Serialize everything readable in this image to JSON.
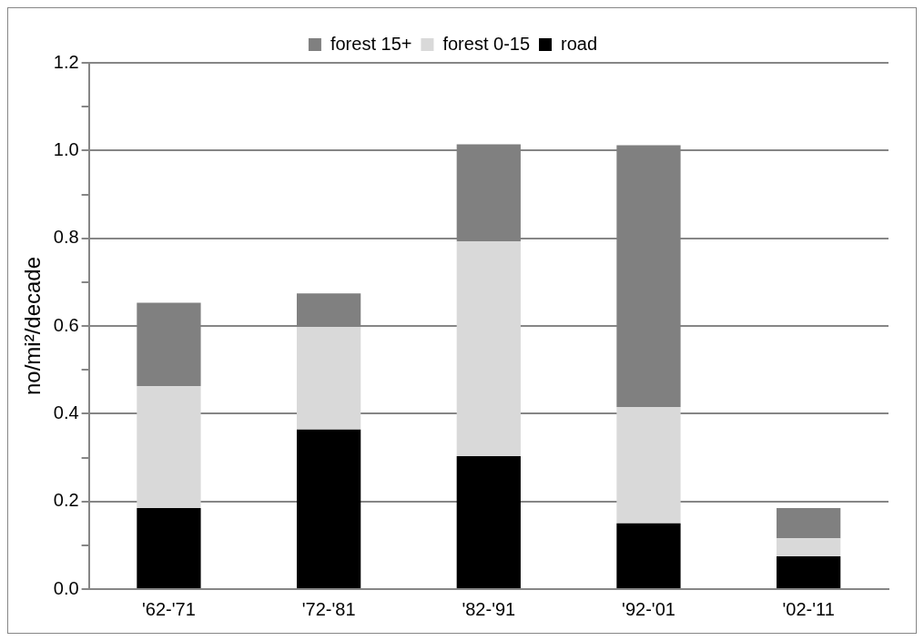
{
  "chart_data": {
    "type": "bar",
    "stacked": true,
    "ylabel": "no/mi²/decade",
    "categories": [
      "'62-'71",
      "'72-'81",
      "'82-'91",
      "'92-'01",
      "'02-'11"
    ],
    "series": [
      {
        "name": "road",
        "color": "#000000",
        "values": [
          0.185,
          0.364,
          0.303,
          0.15,
          0.075
        ]
      },
      {
        "name": "forest 0-15",
        "color": "#d9d9d9",
        "values": [
          0.278,
          0.234,
          0.49,
          0.265,
          0.041
        ]
      },
      {
        "name": "forest 15+",
        "color": "#808080",
        "values": [
          0.19,
          0.076,
          0.221,
          0.597,
          0.069
        ]
      }
    ],
    "ylim": [
      0,
      1.2
    ],
    "yticks": [
      {
        "value": 0,
        "label": "0.0"
      },
      {
        "value": 0.1,
        "label": null
      },
      0.2,
      {
        "value": 0.3,
        "label": null
      },
      0.4,
      {
        "value": 0.5,
        "label": null
      },
      0.6,
      {
        "value": 0.7,
        "label": null
      },
      0.8,
      {
        "value": 0.9,
        "label": null
      },
      {
        "value": 1,
        "label": "1.0"
      },
      {
        "value": 1.1,
        "label": null
      },
      1.2
    ],
    "grid": "y",
    "legend": "top"
  }
}
